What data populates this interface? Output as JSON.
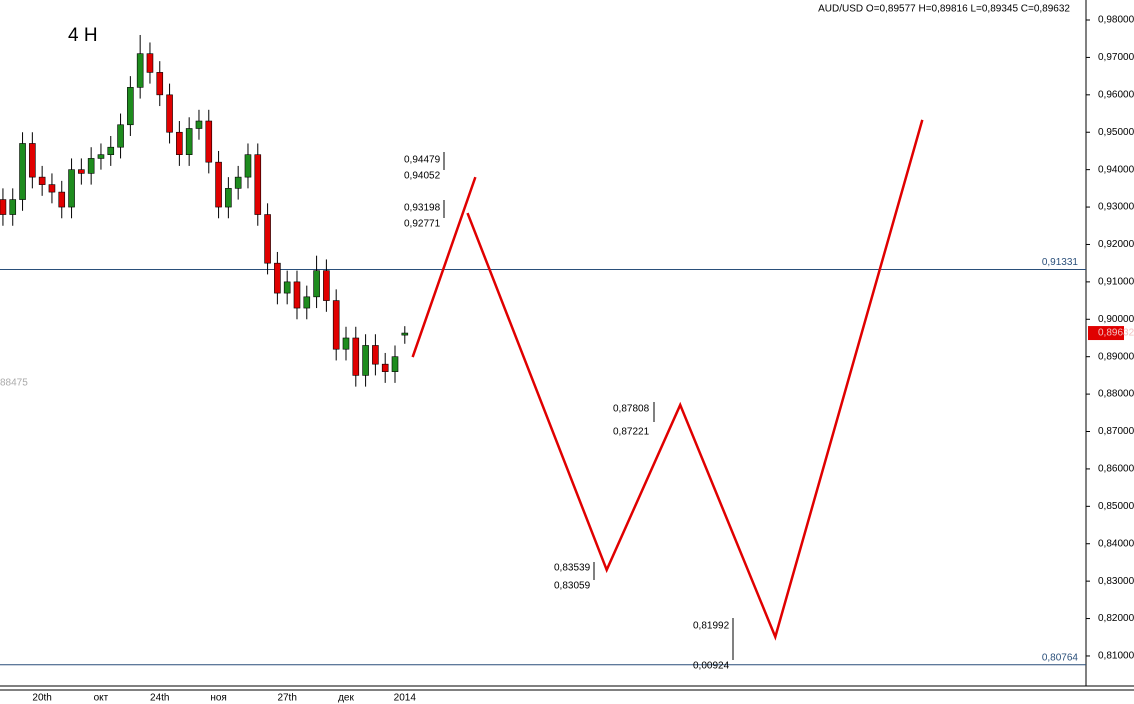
{
  "chart_data": {
    "type": "candlestick",
    "title": "AUD/USD O=0,89577 H=0,89816 L=0,89345 C=0,89632",
    "timeframe": "4 H",
    "categories": [
      null,
      null,
      null,
      null,
      "20th",
      null,
      null,
      null,
      null,
      null,
      "окт",
      null,
      null,
      null,
      null,
      null,
      "24th",
      null,
      null,
      null,
      null,
      null,
      "ноя",
      null,
      null,
      null,
      null,
      null,
      null,
      "27th",
      null,
      null,
      null,
      null,
      null,
      "дек",
      null,
      null,
      null,
      null,
      null,
      "2014"
    ],
    "open": [
      0.932,
      0.928,
      0.932,
      0.947,
      0.938,
      0.936,
      0.934,
      0.93,
      0.94,
      0.939,
      0.943,
      0.944,
      0.946,
      0.952,
      0.962,
      0.971,
      0.966,
      0.96,
      0.95,
      0.944,
      0.951,
      0.953,
      0.942,
      0.93,
      0.935,
      0.938,
      0.944,
      0.928,
      0.915,
      0.907,
      0.91,
      0.903,
      0.906,
      0.913,
      0.905,
      0.892,
      0.895,
      0.885,
      0.893,
      0.888,
      0.886,
      0.89577
    ],
    "high": [
      0.935,
      0.935,
      0.95,
      0.95,
      0.941,
      0.939,
      0.937,
      0.943,
      0.943,
      0.946,
      0.947,
      0.949,
      0.955,
      0.965,
      0.976,
      0.974,
      0.969,
      0.963,
      0.953,
      0.954,
      0.956,
      0.956,
      0.945,
      0.938,
      0.941,
      0.947,
      0.947,
      0.931,
      0.918,
      0.913,
      0.913,
      0.909,
      0.917,
      0.916,
      0.908,
      0.898,
      0.898,
      0.896,
      0.896,
      0.891,
      0.893,
      0.89816
    ],
    "low": [
      0.925,
      0.925,
      0.929,
      0.935,
      0.933,
      0.931,
      0.927,
      0.927,
      0.936,
      0.936,
      0.94,
      0.941,
      0.943,
      0.949,
      0.959,
      0.963,
      0.957,
      0.947,
      0.941,
      0.941,
      0.948,
      0.939,
      0.927,
      0.927,
      0.932,
      0.935,
      0.925,
      0.912,
      0.904,
      0.904,
      0.9,
      0.9,
      0.903,
      0.902,
      0.889,
      0.889,
      0.882,
      0.882,
      0.885,
      0.883,
      0.883,
      0.89345
    ],
    "close": [
      0.928,
      0.932,
      0.947,
      0.938,
      0.936,
      0.934,
      0.93,
      0.94,
      0.939,
      0.943,
      0.944,
      0.946,
      0.952,
      0.962,
      0.971,
      0.966,
      0.96,
      0.95,
      0.944,
      0.951,
      0.953,
      0.942,
      0.93,
      0.935,
      0.938,
      0.944,
      0.928,
      0.915,
      0.907,
      0.91,
      0.903,
      0.906,
      0.913,
      0.905,
      0.892,
      0.895,
      0.885,
      0.893,
      0.888,
      0.886,
      0.89,
      0.89632
    ],
    "up_color": "#1e8c1e",
    "down_color": "#e00000",
    "xlim": [
      -0.3,
      110.5
    ],
    "ylim": [
      0.80197,
      0.98535
    ],
    "yticks": [
      {
        "value": 0.98,
        "label": "0,98000"
      },
      {
        "value": 0.97,
        "label": "0,97000"
      },
      {
        "value": 0.96,
        "label": "0,96000"
      },
      {
        "value": 0.95,
        "label": "0,95000"
      },
      {
        "value": 0.94,
        "label": "0,94000"
      },
      {
        "value": 0.93,
        "label": "0,93000"
      },
      {
        "value": 0.92,
        "label": "0,92000"
      },
      {
        "value": 0.91,
        "label": "0,91000"
      },
      {
        "value": 0.9,
        "label": "0,90000"
      },
      {
        "value": 0.89,
        "label": "0,89000"
      },
      {
        "value": 0.88,
        "label": "0,88000"
      },
      {
        "value": 0.87,
        "label": "0,87000"
      },
      {
        "value": 0.86,
        "label": "0,86000"
      },
      {
        "value": 0.85,
        "label": "0,85000"
      },
      {
        "value": 0.84,
        "label": "0,84000"
      },
      {
        "value": 0.83,
        "label": "0,83000"
      },
      {
        "value": 0.82,
        "label": "0,82000"
      },
      {
        "value": 0.81,
        "label": "0,81000"
      }
    ],
    "levels": [
      {
        "value": 0.91331,
        "label": "0,91331"
      },
      {
        "value": 0.80764,
        "label": "0,80764"
      }
    ],
    "level_color": "#2a4f7a",
    "forecast_color": "#e00000",
    "forecast": [
      {
        "x": [
          41.8,
          48.2
        ],
        "values": [
          0.8899,
          0.938
        ]
      },
      {
        "x": [
          47.4,
          61.6,
          69.1,
          78.8,
          93.8
        ],
        "values": [
          0.9284,
          0.833,
          0.8771,
          0.8151,
          0.9533
        ]
      }
    ],
    "annotations": [
      "0,94479",
      "0,94052",
      "0,93198",
      "0,92771",
      "0,87808",
      "0,87221",
      "0,83539",
      "0,83059",
      "0,81992",
      "0,00924"
    ],
    "last_price": {
      "value": 0.89632,
      "label": "0,89632"
    },
    "left_label": "88475"
  }
}
